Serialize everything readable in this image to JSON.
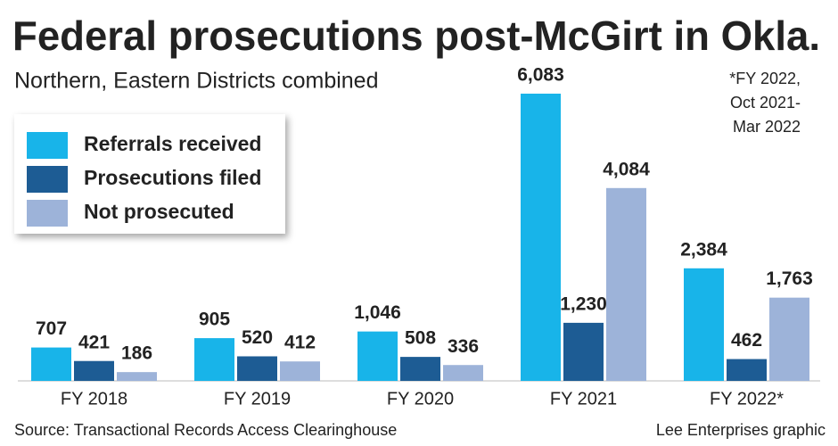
{
  "chart_data": {
    "type": "bar",
    "title": "Federal prosecutions post-McGirt in Okla.",
    "subtitle": "Northern, Eastern Districts combined",
    "note": [
      "*FY 2022,",
      "Oct 2021-",
      "Mar 2022"
    ],
    "source": "Source: Transactional Records Access Clearinghouse",
    "credit": "Lee Enterprises graphic",
    "categories": [
      "FY 2018",
      "FY 2019",
      "FY 2020",
      "FY 2021",
      "FY 2022*"
    ],
    "legend": "upper left",
    "series": [
      {
        "name": "Referrals received",
        "color": "#18b4e9",
        "values": [
          707,
          905,
          1046,
          6083,
          2384
        ],
        "value_labels": [
          "707",
          "905",
          "1,046",
          "6,083",
          "2,384"
        ]
      },
      {
        "name": "Prosecutions filed",
        "color": "#1d5c94",
        "values": [
          421,
          520,
          508,
          1230,
          462
        ],
        "value_labels": [
          "421",
          "520",
          "508",
          "1,230",
          "462"
        ]
      },
      {
        "name": "Not prosecuted",
        "color": "#9db3d9",
        "values": [
          186,
          412,
          336,
          4084,
          1763
        ],
        "value_labels": [
          "186",
          "412",
          "336",
          "4,084",
          "1,763"
        ]
      }
    ]
  }
}
